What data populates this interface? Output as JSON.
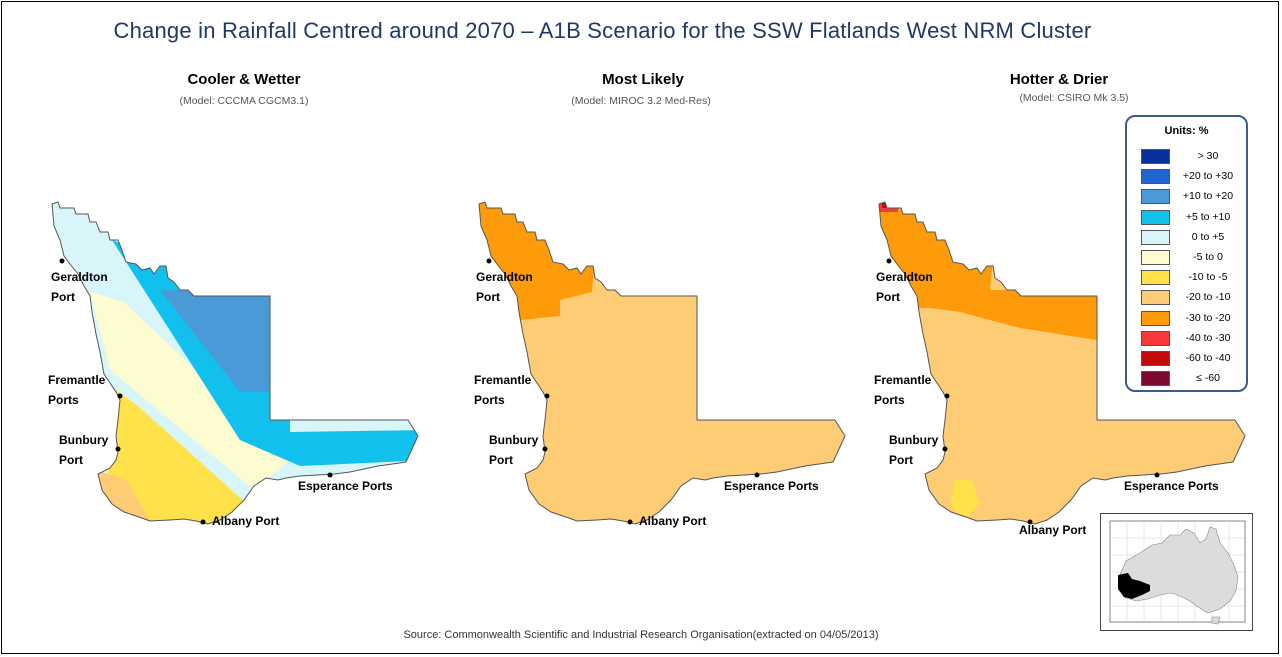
{
  "title": "Change in Rainfall Centred around 2070 – A1B Scenario for the SSW Flatlands West NRM Cluster",
  "panels": [
    {
      "title": "Cooler & Wetter",
      "model": "(Model: CCCMA CGCM3.1)"
    },
    {
      "title": "Most Likely",
      "model": "(Model: MIROC 3.2 Med-Res)"
    },
    {
      "title": "Hotter & Drier",
      "model": "(Model: CSIRO Mk 3.5)"
    }
  ],
  "places": {
    "geraldton_1": "Geraldton",
    "geraldton_2": "Port",
    "fremantle_1": "Fremantle",
    "fremantle_2": "Ports",
    "bunbury_1": "Bunbury",
    "bunbury_2": "Port",
    "esperance": "Esperance Ports",
    "albany": "Albany Port"
  },
  "legend": {
    "title": "Units: %",
    "items": [
      {
        "label": "> 30",
        "color": "#08309a"
      },
      {
        "label": "+20 to +30",
        "color": "#2166d1"
      },
      {
        "label": "+10 to +20",
        "color": "#4a9ad8"
      },
      {
        "label": "+5 to +10",
        "color": "#12c0ee"
      },
      {
        "label": "0 to +5",
        "color": "#d8f6fa"
      },
      {
        "label": "-5 to 0",
        "color": "#fdfbd0"
      },
      {
        "label": "-10 to -5",
        "color": "#ffe24a"
      },
      {
        "label": "-20 to -10",
        "color": "#fdcc75"
      },
      {
        "label": "-30 to -20",
        "color": "#fd9b0b"
      },
      {
        "label": "-40 to -30",
        "color": "#f63a3a"
      },
      {
        "label": "-60 to -40",
        "color": "#c40b0b"
      },
      {
        "label": "≤ -60",
        "color": "#7e0a34"
      }
    ]
  },
  "source": "Source: Commonwealth Scientific and Industrial Research Organisation(extracted on 04/05/2013)"
}
